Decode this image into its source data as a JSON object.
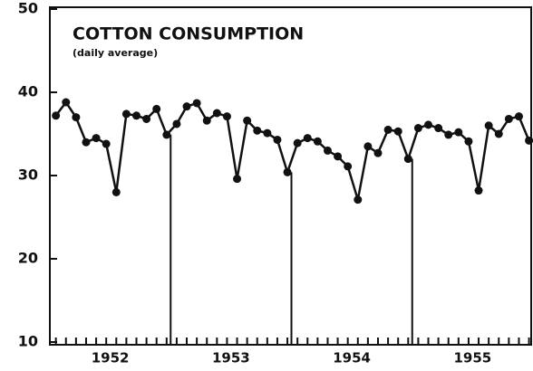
{
  "chart_data": {
    "type": "line",
    "title": "COTTON CONSUMPTION",
    "subtitle": "(daily average)",
    "year_labels": [
      "1952",
      "1953",
      "1954",
      "1955"
    ],
    "series": [
      {
        "color": "#111111",
        "values": [
          37.2,
          38.8,
          37.0,
          34.0,
          34.5,
          33.8,
          28.0,
          37.4,
          37.2,
          36.8,
          38.0,
          34.9,
          36.2,
          38.3,
          38.7,
          36.6,
          37.5,
          37.1,
          29.6,
          36.6,
          35.4,
          35.1,
          34.3,
          30.4,
          33.9,
          34.5,
          34.1,
          33.0,
          32.3,
          31.1,
          27.1,
          33.5,
          32.7,
          35.5,
          35.3,
          32.0,
          35.7,
          36.1,
          35.7,
          34.9,
          35.2,
          34.1,
          28.2,
          36.0,
          35.0,
          36.8,
          37.1,
          34.2
        ]
      }
    ],
    "ylim": [
      10,
      50
    ],
    "yticks": [
      10,
      20,
      30,
      40,
      50
    ]
  }
}
